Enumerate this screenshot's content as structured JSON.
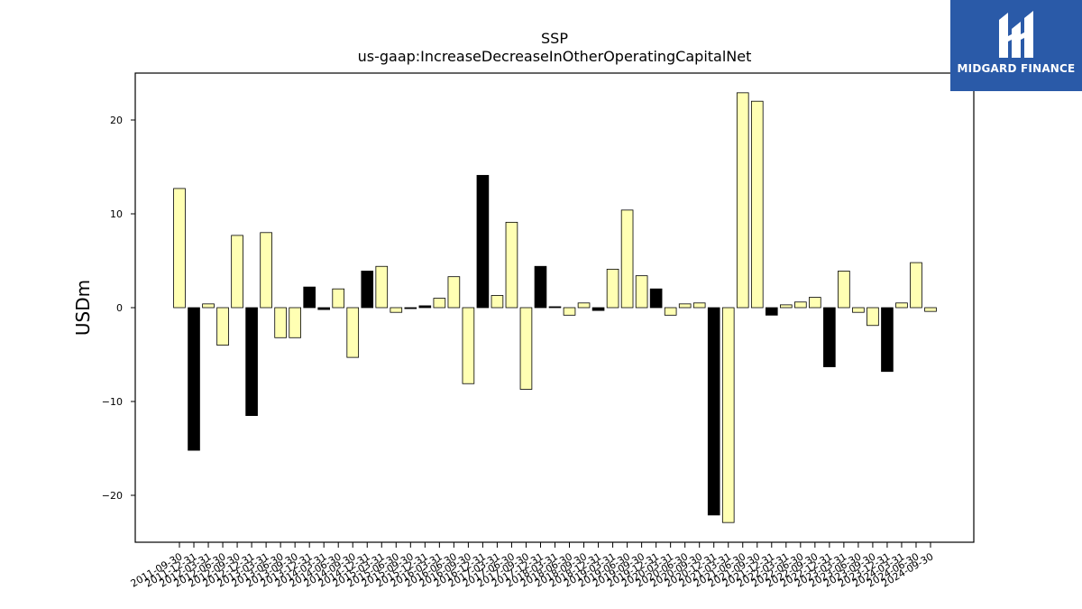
{
  "brand": {
    "name": "MIDGARD FINANCE",
    "icon": "midgard-logo-icon",
    "color": "#2a5aa8"
  },
  "chart_data": {
    "type": "bar",
    "title": "SSP",
    "subtitle": "us-gaap:IncreaseDecreaseInOtherOperatingCapitalNet",
    "xlabel": "",
    "ylabel": "USDm",
    "ylim": [
      -25,
      25
    ],
    "yticks": [
      -20,
      -10,
      0,
      10,
      20
    ],
    "grid": false,
    "colors": {
      "positive": "#ffffb3",
      "negative": "#000000",
      "edge": "#000000"
    },
    "categories": [
      "2011-09-30",
      "2011-12-31",
      "2012-03-31",
      "2012-06-30",
      "2012-09-30",
      "2012-12-31",
      "2013-03-31",
      "2013-06-30",
      "2013-09-30",
      "2013-12-31",
      "2014-03-31",
      "2014-06-30",
      "2014-09-30",
      "2014-12-31",
      "2015-03-31",
      "2015-06-30",
      "2015-09-30",
      "2015-12-31",
      "2016-03-31",
      "2016-06-30",
      "2016-09-30",
      "2016-12-31",
      "2017-03-31",
      "2017-06-30",
      "2017-09-30",
      "2017-12-31",
      "2018-03-31",
      "2018-06-30",
      "2018-09-30",
      "2018-12-31",
      "2019-03-31",
      "2019-06-30",
      "2019-09-30",
      "2019-12-31",
      "2020-03-31",
      "2020-06-30",
      "2020-09-30",
      "2020-12-31",
      "2021-03-31",
      "2021-06-30",
      "2021-09-30",
      "2021-12-31",
      "2022-03-31",
      "2022-06-30",
      "2022-09-30",
      "2022-12-31",
      "2023-03-31",
      "2023-06-30",
      "2023-09-30",
      "2023-12-31",
      "2024-03-31",
      "2024-06-30",
      "2024-09-30"
    ],
    "values": [
      12.7,
      -15.2,
      0.4,
      -4.0,
      7.7,
      -11.5,
      8.0,
      -3.2,
      -3.2,
      2.2,
      -0.2,
      2.0,
      -5.3,
      3.9,
      4.4,
      -0.5,
      -0.1,
      0.2,
      1.0,
      3.3,
      -8.1,
      14.1,
      1.3,
      9.1,
      -8.7,
      4.4,
      0.1,
      -0.8,
      0.5,
      -0.3,
      4.1,
      10.4,
      3.4,
      2.0,
      -0.8,
      0.4,
      0.5,
      -22.1,
      -22.9,
      22.9,
      22.0,
      -0.8,
      0.3,
      0.6,
      1.1,
      -6.3,
      3.9,
      -0.5,
      -1.9,
      -6.8,
      0.5,
      4.8,
      -0.4
    ],
    "bar_colors": [
      "positive",
      "negative",
      "positive",
      "positive",
      "positive",
      "negative",
      "positive",
      "positive",
      "positive",
      "negative",
      "negative",
      "positive",
      "positive",
      "negative",
      "positive",
      "positive",
      "negative",
      "negative",
      "positive",
      "positive",
      "positive",
      "negative",
      "positive",
      "positive",
      "positive",
      "negative",
      "negative",
      "positive",
      "positive",
      "negative",
      "positive",
      "positive",
      "positive",
      "negative",
      "positive",
      "positive",
      "positive",
      "negative",
      "positive",
      "positive",
      "positive",
      "negative",
      "positive",
      "positive",
      "positive",
      "negative",
      "positive",
      "positive",
      "positive",
      "negative",
      "positive",
      "positive",
      "positive"
    ]
  }
}
